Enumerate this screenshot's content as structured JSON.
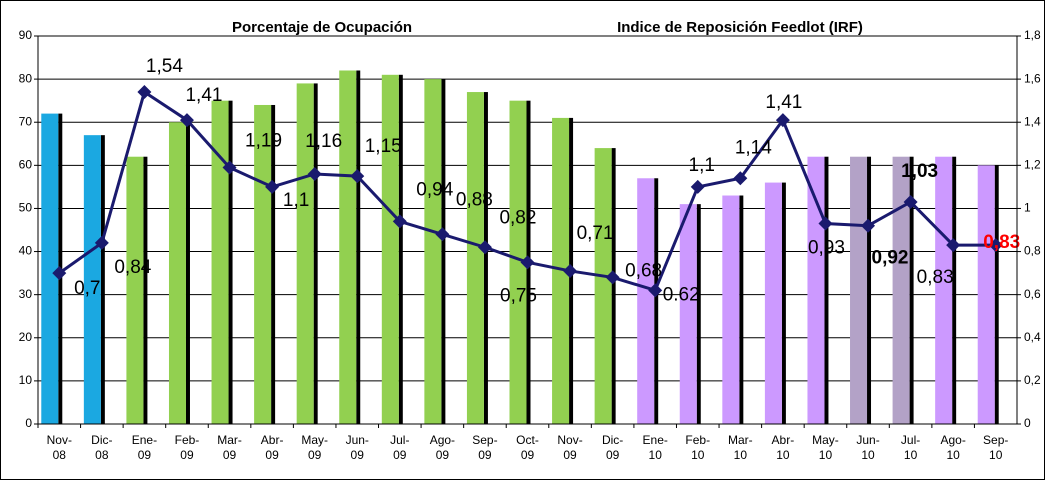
{
  "chart_data": {
    "type": "bar",
    "titles": [
      "Porcentaje de Ocupación",
      "Indice de Reposición Feedlot (IRF)"
    ],
    "categories": [
      "Nov-08",
      "Dic-08",
      "Ene-09",
      "Feb-09",
      "Mar-09",
      "Abr-09",
      "May-09",
      "Jun-09",
      "Jul-09",
      "Ago-09",
      "Sep-09",
      "Oct-09",
      "Nov-09",
      "Dic-09",
      "Ene-10",
      "Feb-10",
      "Mar-10",
      "Abr-10",
      "May-10",
      "Jun-10",
      "Jul-10",
      "Ago-10",
      "Sep-10"
    ],
    "series": [
      {
        "type": "bar",
        "values": [
          72,
          67,
          62,
          70,
          75,
          74,
          79,
          82,
          81,
          80,
          77,
          75,
          71,
          64,
          57,
          51,
          53,
          56,
          62,
          62,
          62,
          62,
          60
        ],
        "colors": [
          "#1ba8e1",
          "#1ba8e1",
          "#92d050",
          "#92d050",
          "#92d050",
          "#92d050",
          "#92d050",
          "#92d050",
          "#92d050",
          "#92d050",
          "#92d050",
          "#92d050",
          "#92d050",
          "#92d050",
          "#cc99ff",
          "#cc99ff",
          "#cc99ff",
          "#cc99ff",
          "#cc99ff",
          "#b3a2c7",
          "#b3a2c7",
          "#cc99ff",
          "#cc99ff"
        ]
      },
      {
        "type": "line",
        "axis": "y2",
        "color": "#1a1a6e",
        "values": [
          0.7,
          0.84,
          1.54,
          1.41,
          1.19,
          1.1,
          1.16,
          1.15,
          0.94,
          0.88,
          0.82,
          0.75,
          0.71,
          0.68,
          0.62,
          1.1,
          1.14,
          1.41,
          0.93,
          0.92,
          1.03,
          0.83,
          0.83
        ],
        "value_labels": [
          "0,7",
          "0,84",
          "1,54",
          "1,41",
          "1,19",
          "1,1",
          "1,16",
          "1,15",
          "0,94",
          "0,88",
          "0,82",
          "0,75",
          "0,71",
          "0,68",
          "0.62",
          "1,1",
          "1,14",
          "1,41",
          "0,93",
          "0,92",
          "1,03",
          "0,83",
          "0,83"
        ]
      }
    ],
    "ylim": [
      0,
      90
    ],
    "yticks": [
      0,
      10,
      20,
      30,
      40,
      50,
      60,
      70,
      80,
      90
    ],
    "y2lim": [
      0,
      1.8
    ],
    "y2ticks": [
      0,
      {
        "value": 0.2,
        "label": "0,2"
      },
      {
        "value": 0.4,
        "label": "0,4"
      },
      {
        "value": 0.6,
        "label": "0,6"
      },
      {
        "value": 0.8,
        "label": "0,8"
      },
      1,
      {
        "value": 1.2,
        "label": "1,2"
      },
      {
        "value": 1.4,
        "label": "1,4"
      },
      {
        "value": 1.6,
        "label": "1,6"
      },
      {
        "value": 1.8,
        "label": "1,8"
      }
    ],
    "grid": true
  }
}
